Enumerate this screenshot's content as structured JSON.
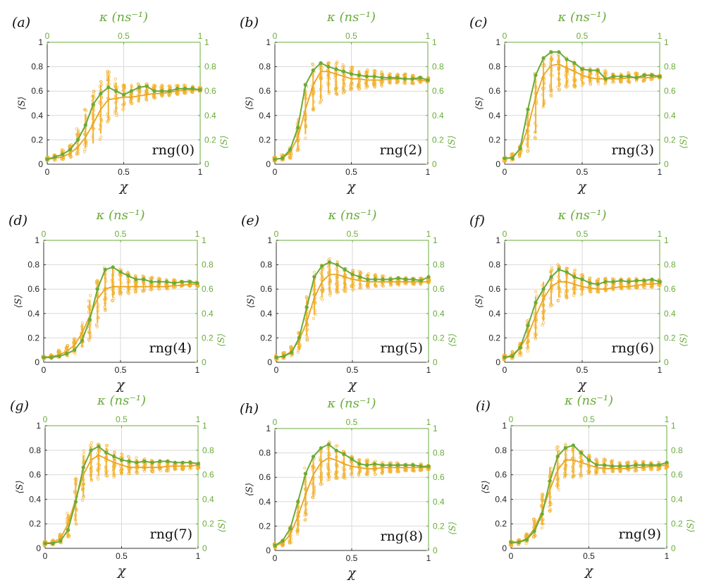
{
  "colors": {
    "orange": "#f2b02c",
    "orange_line": "#e8a523",
    "green": "#6aab3a",
    "grid": "#d9d9d9",
    "axis": "#333333"
  },
  "axis_text": {
    "x_label": "χ",
    "y_label": "⟨S⟩",
    "top_label": "κ (ns⁻¹)",
    "right_label": "⟨S⟩",
    "ticks_bottom": [
      "0",
      "0.5",
      "1"
    ],
    "ticks_top": [
      "0",
      "0.5",
      "1"
    ],
    "ticks_left": [
      "0",
      "0.2",
      "0.4",
      "0.6",
      "0.8",
      "1"
    ],
    "ticks_right": [
      "0",
      "0.2",
      "0.4",
      "0.6",
      "0.8",
      "1"
    ]
  },
  "chart_data": [
    {
      "type": "line",
      "panel": "(a)",
      "label": "rng(0)",
      "xlim": [
        0,
        1
      ],
      "ylim": [
        0,
        1
      ],
      "top_xlim": [
        0,
        1
      ],
      "right_ylim": [
        0,
        1
      ],
      "x": [
        0,
        0.05,
        0.1,
        0.15,
        0.2,
        0.25,
        0.3,
        0.35,
        0.4,
        0.45,
        0.5,
        0.55,
        0.6,
        0.65,
        0.7,
        0.75,
        0.8,
        0.85,
        0.9,
        0.95,
        1.0
      ],
      "mean": [
        0.04,
        0.05,
        0.06,
        0.09,
        0.14,
        0.22,
        0.33,
        0.45,
        0.53,
        0.54,
        0.55,
        0.55,
        0.56,
        0.57,
        0.58,
        0.58,
        0.59,
        0.6,
        0.61,
        0.61,
        0.61
      ],
      "green": [
        0.04,
        0.06,
        0.08,
        0.12,
        0.2,
        0.32,
        0.49,
        0.58,
        0.63,
        0.6,
        0.57,
        0.6,
        0.63,
        0.64,
        0.6,
        0.6,
        0.6,
        0.62,
        0.62,
        0.62,
        0.61
      ],
      "spread_low": [
        0.03,
        0.03,
        0.04,
        0.05,
        0.07,
        0.1,
        0.12,
        0.2,
        0.32,
        0.4,
        0.44,
        0.48,
        0.5,
        0.52,
        0.54,
        0.55,
        0.56,
        0.57,
        0.58,
        0.59,
        0.6
      ],
      "spread_high": [
        0.06,
        0.08,
        0.12,
        0.16,
        0.3,
        0.45,
        0.62,
        0.7,
        0.78,
        0.7,
        0.68,
        0.66,
        0.66,
        0.66,
        0.65,
        0.65,
        0.65,
        0.65,
        0.65,
        0.64,
        0.63
      ]
    },
    {
      "type": "line",
      "panel": "(b)",
      "label": "rng(2)",
      "xlim": [
        0,
        1
      ],
      "ylim": [
        0,
        1
      ],
      "top_xlim": [
        0,
        1
      ],
      "right_ylim": [
        0,
        1
      ],
      "x": [
        0,
        0.05,
        0.1,
        0.15,
        0.2,
        0.25,
        0.3,
        0.35,
        0.4,
        0.45,
        0.5,
        0.55,
        0.6,
        0.65,
        0.7,
        0.75,
        0.8,
        0.85,
        0.9,
        0.95,
        1.0
      ],
      "mean": [
        0.04,
        0.05,
        0.1,
        0.22,
        0.45,
        0.65,
        0.76,
        0.76,
        0.74,
        0.72,
        0.7,
        0.7,
        0.69,
        0.69,
        0.69,
        0.7,
        0.7,
        0.7,
        0.7,
        0.69,
        0.68
      ],
      "green": [
        0.04,
        0.05,
        0.12,
        0.3,
        0.65,
        0.77,
        0.83,
        0.8,
        0.78,
        0.76,
        0.74,
        0.73,
        0.72,
        0.72,
        0.71,
        0.71,
        0.71,
        0.7,
        0.7,
        0.71,
        0.69
      ],
      "spread_low": [
        0.02,
        0.03,
        0.05,
        0.1,
        0.2,
        0.4,
        0.5,
        0.55,
        0.57,
        0.58,
        0.6,
        0.61,
        0.62,
        0.63,
        0.64,
        0.65,
        0.66,
        0.66,
        0.66,
        0.67,
        0.67
      ],
      "spread_high": [
        0.06,
        0.08,
        0.14,
        0.38,
        0.66,
        0.83,
        0.86,
        0.86,
        0.84,
        0.82,
        0.8,
        0.79,
        0.78,
        0.77,
        0.76,
        0.75,
        0.74,
        0.74,
        0.73,
        0.72,
        0.71
      ]
    },
    {
      "type": "line",
      "panel": "(c)",
      "label": "rng(3)",
      "xlim": [
        0,
        1
      ],
      "ylim": [
        0,
        1
      ],
      "top_xlim": [
        0,
        1
      ],
      "right_ylim": [
        0,
        1
      ],
      "x": [
        0,
        0.05,
        0.1,
        0.15,
        0.2,
        0.25,
        0.3,
        0.35,
        0.4,
        0.45,
        0.5,
        0.55,
        0.6,
        0.65,
        0.7,
        0.75,
        0.8,
        0.85,
        0.9,
        0.95,
        1.0
      ],
      "mean": [
        0.04,
        0.06,
        0.12,
        0.3,
        0.55,
        0.73,
        0.81,
        0.82,
        0.79,
        0.76,
        0.73,
        0.71,
        0.7,
        0.7,
        0.7,
        0.7,
        0.71,
        0.71,
        0.71,
        0.71,
        0.72
      ],
      "green": [
        0.05,
        0.05,
        0.13,
        0.45,
        0.73,
        0.87,
        0.92,
        0.92,
        0.86,
        0.83,
        0.78,
        0.77,
        0.77,
        0.7,
        0.72,
        0.72,
        0.72,
        0.71,
        0.73,
        0.73,
        0.72
      ],
      "spread_low": [
        0.02,
        0.03,
        0.05,
        0.1,
        0.2,
        0.42,
        0.55,
        0.6,
        0.62,
        0.63,
        0.64,
        0.65,
        0.66,
        0.66,
        0.67,
        0.67,
        0.67,
        0.68,
        0.68,
        0.69,
        0.7
      ],
      "spread_high": [
        0.06,
        0.09,
        0.16,
        0.46,
        0.76,
        0.9,
        0.93,
        0.93,
        0.88,
        0.84,
        0.8,
        0.79,
        0.78,
        0.77,
        0.76,
        0.75,
        0.75,
        0.75,
        0.74,
        0.74,
        0.73
      ]
    },
    {
      "type": "line",
      "panel": "(d)",
      "label": "rng(4)",
      "xlim": [
        0,
        1
      ],
      "ylim": [
        0,
        1
      ],
      "top_xlim": [
        0,
        1
      ],
      "right_ylim": [
        0,
        1
      ],
      "x": [
        0,
        0.05,
        0.1,
        0.15,
        0.2,
        0.25,
        0.3,
        0.35,
        0.4,
        0.45,
        0.5,
        0.55,
        0.6,
        0.65,
        0.7,
        0.75,
        0.8,
        0.85,
        0.9,
        0.95,
        1.0
      ],
      "mean": [
        0.04,
        0.05,
        0.06,
        0.09,
        0.14,
        0.24,
        0.38,
        0.52,
        0.6,
        0.62,
        0.62,
        0.62,
        0.62,
        0.62,
        0.62,
        0.62,
        0.62,
        0.63,
        0.63,
        0.64,
        0.64
      ],
      "green": [
        0.04,
        0.04,
        0.05,
        0.07,
        0.1,
        0.18,
        0.35,
        0.6,
        0.76,
        0.78,
        0.74,
        0.71,
        0.68,
        0.68,
        0.66,
        0.66,
        0.66,
        0.65,
        0.66,
        0.66,
        0.65
      ],
      "spread_low": [
        0.03,
        0.03,
        0.04,
        0.05,
        0.07,
        0.1,
        0.15,
        0.28,
        0.42,
        0.5,
        0.54,
        0.56,
        0.57,
        0.58,
        0.59,
        0.6,
        0.6,
        0.61,
        0.61,
        0.62,
        0.62
      ],
      "spread_high": [
        0.05,
        0.07,
        0.1,
        0.14,
        0.2,
        0.34,
        0.55,
        0.7,
        0.79,
        0.8,
        0.77,
        0.74,
        0.72,
        0.71,
        0.7,
        0.69,
        0.68,
        0.68,
        0.67,
        0.67,
        0.66
      ]
    },
    {
      "type": "line",
      "panel": "(e)",
      "label": "rng(5)",
      "xlim": [
        0,
        1
      ],
      "ylim": [
        0,
        1
      ],
      "top_xlim": [
        0,
        1
      ],
      "right_ylim": [
        0,
        1
      ],
      "x": [
        0,
        0.05,
        0.1,
        0.15,
        0.2,
        0.25,
        0.3,
        0.35,
        0.4,
        0.45,
        0.5,
        0.55,
        0.6,
        0.65,
        0.7,
        0.75,
        0.8,
        0.85,
        0.9,
        0.95,
        1.0
      ],
      "mean": [
        0.04,
        0.05,
        0.09,
        0.18,
        0.33,
        0.53,
        0.66,
        0.72,
        0.72,
        0.7,
        0.68,
        0.67,
        0.66,
        0.66,
        0.66,
        0.66,
        0.66,
        0.66,
        0.66,
        0.66,
        0.66
      ],
      "green": [
        0.04,
        0.05,
        0.08,
        0.2,
        0.45,
        0.7,
        0.79,
        0.82,
        0.8,
        0.76,
        0.72,
        0.7,
        0.68,
        0.68,
        0.68,
        0.68,
        0.69,
        0.68,
        0.68,
        0.67,
        0.7
      ],
      "spread_low": [
        0.02,
        0.03,
        0.05,
        0.08,
        0.18,
        0.35,
        0.5,
        0.55,
        0.56,
        0.58,
        0.59,
        0.6,
        0.61,
        0.62,
        0.62,
        0.63,
        0.63,
        0.64,
        0.64,
        0.64,
        0.65
      ],
      "spread_high": [
        0.06,
        0.08,
        0.13,
        0.26,
        0.55,
        0.74,
        0.83,
        0.85,
        0.84,
        0.8,
        0.77,
        0.75,
        0.73,
        0.72,
        0.71,
        0.7,
        0.7,
        0.7,
        0.69,
        0.69,
        0.69
      ]
    },
    {
      "type": "line",
      "panel": "(f)",
      "label": "rng(6)",
      "xlim": [
        0,
        1
      ],
      "ylim": [
        0,
        1
      ],
      "top_xlim": [
        0,
        1
      ],
      "right_ylim": [
        0,
        1
      ],
      "x": [
        0,
        0.05,
        0.1,
        0.15,
        0.2,
        0.25,
        0.3,
        0.35,
        0.4,
        0.45,
        0.5,
        0.55,
        0.6,
        0.65,
        0.7,
        0.75,
        0.8,
        0.85,
        0.9,
        0.95,
        1.0
      ],
      "mean": [
        0.04,
        0.06,
        0.12,
        0.22,
        0.38,
        0.52,
        0.62,
        0.66,
        0.66,
        0.64,
        0.62,
        0.61,
        0.6,
        0.6,
        0.61,
        0.62,
        0.62,
        0.63,
        0.64,
        0.64,
        0.65
      ],
      "green": [
        0.04,
        0.05,
        0.12,
        0.3,
        0.49,
        0.6,
        0.7,
        0.76,
        0.74,
        0.7,
        0.68,
        0.65,
        0.64,
        0.66,
        0.66,
        0.67,
        0.66,
        0.67,
        0.67,
        0.68,
        0.66
      ],
      "spread_low": [
        0.02,
        0.03,
        0.05,
        0.09,
        0.16,
        0.3,
        0.44,
        0.5,
        0.52,
        0.54,
        0.55,
        0.56,
        0.57,
        0.58,
        0.58,
        0.59,
        0.6,
        0.6,
        0.61,
        0.61,
        0.62
      ],
      "spread_high": [
        0.06,
        0.09,
        0.18,
        0.36,
        0.58,
        0.7,
        0.78,
        0.82,
        0.8,
        0.76,
        0.72,
        0.7,
        0.69,
        0.69,
        0.69,
        0.69,
        0.69,
        0.69,
        0.68,
        0.68,
        0.68
      ]
    },
    {
      "type": "line",
      "panel": "(g)",
      "label": "rng(7)",
      "xlim": [
        0,
        1
      ],
      "ylim": [
        0,
        1
      ],
      "top_xlim": [
        0,
        1
      ],
      "right_ylim": [
        0,
        1
      ],
      "x": [
        0,
        0.05,
        0.1,
        0.15,
        0.2,
        0.25,
        0.3,
        0.35,
        0.4,
        0.45,
        0.5,
        0.55,
        0.6,
        0.65,
        0.7,
        0.75,
        0.8,
        0.85,
        0.9,
        0.95,
        1.0
      ],
      "mean": [
        0.04,
        0.05,
        0.08,
        0.2,
        0.4,
        0.6,
        0.72,
        0.76,
        0.73,
        0.7,
        0.68,
        0.66,
        0.66,
        0.66,
        0.66,
        0.66,
        0.67,
        0.67,
        0.67,
        0.67,
        0.68
      ],
      "green": [
        0.04,
        0.04,
        0.06,
        0.15,
        0.38,
        0.66,
        0.8,
        0.83,
        0.78,
        0.75,
        0.72,
        0.71,
        0.7,
        0.71,
        0.7,
        0.71,
        0.71,
        0.7,
        0.7,
        0.7,
        0.69
      ],
      "spread_low": [
        0.02,
        0.03,
        0.04,
        0.08,
        0.18,
        0.38,
        0.52,
        0.56,
        0.57,
        0.58,
        0.59,
        0.6,
        0.61,
        0.62,
        0.62,
        0.63,
        0.63,
        0.64,
        0.64,
        0.64,
        0.65
      ],
      "spread_high": [
        0.06,
        0.07,
        0.12,
        0.3,
        0.6,
        0.8,
        0.86,
        0.88,
        0.85,
        0.8,
        0.77,
        0.75,
        0.74,
        0.73,
        0.72,
        0.72,
        0.72,
        0.71,
        0.71,
        0.71,
        0.7
      ]
    },
    {
      "type": "line",
      "panel": "(h)",
      "label": "rng(8)",
      "xlim": [
        0,
        1
      ],
      "ylim": [
        0,
        1
      ],
      "top_xlim": [
        0,
        1
      ],
      "right_ylim": [
        0,
        1
      ],
      "x": [
        0,
        0.05,
        0.1,
        0.15,
        0.2,
        0.25,
        0.3,
        0.35,
        0.4,
        0.45,
        0.5,
        0.55,
        0.6,
        0.65,
        0.7,
        0.75,
        0.8,
        0.85,
        0.9,
        0.95,
        1.0
      ],
      "mean": [
        0.04,
        0.06,
        0.13,
        0.28,
        0.46,
        0.62,
        0.72,
        0.76,
        0.74,
        0.71,
        0.69,
        0.68,
        0.67,
        0.67,
        0.68,
        0.68,
        0.68,
        0.68,
        0.68,
        0.68,
        0.68
      ],
      "green": [
        0.04,
        0.08,
        0.18,
        0.4,
        0.63,
        0.77,
        0.84,
        0.87,
        0.82,
        0.79,
        0.75,
        0.71,
        0.7,
        0.71,
        0.7,
        0.7,
        0.7,
        0.7,
        0.7,
        0.69,
        0.69
      ],
      "spread_low": [
        0.02,
        0.03,
        0.06,
        0.12,
        0.24,
        0.4,
        0.52,
        0.56,
        0.58,
        0.59,
        0.6,
        0.61,
        0.62,
        0.62,
        0.63,
        0.64,
        0.64,
        0.65,
        0.65,
        0.65,
        0.66
      ],
      "spread_high": [
        0.06,
        0.09,
        0.2,
        0.42,
        0.68,
        0.82,
        0.87,
        0.89,
        0.86,
        0.82,
        0.78,
        0.76,
        0.75,
        0.74,
        0.73,
        0.72,
        0.72,
        0.71,
        0.71,
        0.71,
        0.7
      ]
    },
    {
      "type": "line",
      "panel": "(i)",
      "label": "rng(9)",
      "xlim": [
        0,
        1
      ],
      "ylim": [
        0,
        1
      ],
      "top_xlim": [
        0,
        1
      ],
      "right_ylim": [
        0,
        1
      ],
      "x": [
        0,
        0.05,
        0.1,
        0.15,
        0.2,
        0.25,
        0.3,
        0.35,
        0.4,
        0.45,
        0.5,
        0.55,
        0.6,
        0.65,
        0.7,
        0.75,
        0.8,
        0.85,
        0.9,
        0.95,
        1.0
      ],
      "mean": [
        0.04,
        0.05,
        0.08,
        0.16,
        0.3,
        0.48,
        0.64,
        0.72,
        0.72,
        0.7,
        0.68,
        0.66,
        0.65,
        0.65,
        0.65,
        0.65,
        0.66,
        0.66,
        0.67,
        0.67,
        0.68
      ],
      "green": [
        0.05,
        0.05,
        0.07,
        0.14,
        0.28,
        0.55,
        0.75,
        0.82,
        0.84,
        0.78,
        0.72,
        0.68,
        0.68,
        0.67,
        0.67,
        0.67,
        0.68,
        0.68,
        0.68,
        0.68,
        0.7
      ],
      "spread_low": [
        0.02,
        0.03,
        0.04,
        0.08,
        0.16,
        0.3,
        0.45,
        0.55,
        0.57,
        0.58,
        0.59,
        0.6,
        0.61,
        0.62,
        0.62,
        0.63,
        0.63,
        0.64,
        0.64,
        0.64,
        0.65
      ],
      "spread_high": [
        0.06,
        0.07,
        0.12,
        0.24,
        0.46,
        0.7,
        0.83,
        0.86,
        0.85,
        0.8,
        0.76,
        0.74,
        0.73,
        0.72,
        0.72,
        0.71,
        0.71,
        0.71,
        0.7,
        0.7,
        0.7
      ]
    }
  ]
}
